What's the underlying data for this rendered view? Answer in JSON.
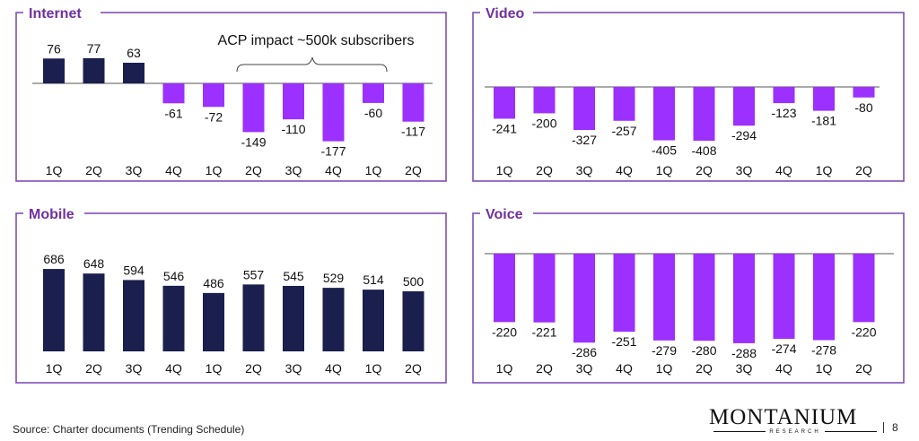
{
  "colors": {
    "positive": "#1a1f4e",
    "negative": "#9b30ff",
    "title": "#7030a0",
    "frame": "#7e4fb5"
  },
  "chart_data": [
    {
      "type": "bar",
      "title": "Internet",
      "categories": [
        "1Q",
        "2Q",
        "3Q",
        "4Q",
        "1Q",
        "2Q",
        "3Q",
        "4Q",
        "1Q",
        "2Q"
      ],
      "values": [
        76,
        77,
        63,
        -61,
        -72,
        -149,
        -110,
        -177,
        -60,
        -117
      ],
      "annotation": "ACP impact ~500k subscribers"
    },
    {
      "type": "bar",
      "title": "Video",
      "categories": [
        "1Q",
        "2Q",
        "3Q",
        "4Q",
        "1Q",
        "2Q",
        "3Q",
        "4Q",
        "1Q",
        "2Q"
      ],
      "values": [
        -241,
        -200,
        -327,
        -257,
        -405,
        -408,
        -294,
        -123,
        -181,
        -80
      ]
    },
    {
      "type": "bar",
      "title": "Mobile",
      "categories": [
        "1Q",
        "2Q",
        "3Q",
        "4Q",
        "1Q",
        "2Q",
        "3Q",
        "4Q",
        "1Q",
        "2Q"
      ],
      "values": [
        686,
        648,
        594,
        546,
        486,
        557,
        545,
        529,
        514,
        500
      ]
    },
    {
      "type": "bar",
      "title": "Voice",
      "categories": [
        "1Q",
        "2Q",
        "3Q",
        "4Q",
        "1Q",
        "2Q",
        "3Q",
        "4Q",
        "1Q",
        "2Q"
      ],
      "values": [
        -220,
        -221,
        -286,
        -251,
        -279,
        -280,
        -288,
        -274,
        -278,
        -220
      ]
    }
  ],
  "footer": {
    "source": "Source: Charter documents (Trending Schedule)",
    "logo": "MONTANIUM",
    "logo_sub": "RESEARCH",
    "page": "8"
  }
}
